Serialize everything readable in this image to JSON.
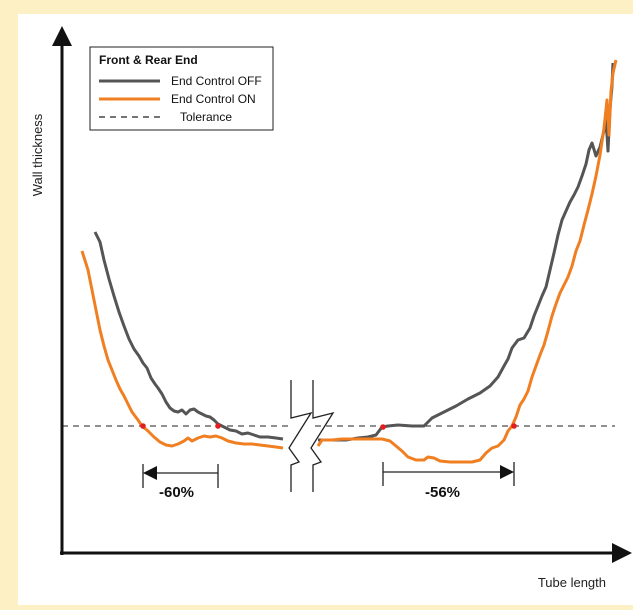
{
  "chart_data": {
    "type": "line",
    "title": "",
    "xlabel": "Tube length",
    "ylabel": "Wall thickness",
    "grid": false,
    "axes_ticks": false,
    "legend": {
      "title": "Front & Rear End",
      "placement": "top-left",
      "entries": [
        {
          "label": "End Control OFF",
          "style": "solid",
          "color": "#555555"
        },
        {
          "label": "End Control ON",
          "style": "solid",
          "color": "#f07f22"
        },
        {
          "label": "Tolerance",
          "style": "dashed",
          "color": "#222222"
        }
      ]
    },
    "annotations": [
      {
        "text": "-60%",
        "region": "front end"
      },
      {
        "text": "-56%",
        "region": "rear end"
      }
    ],
    "break_symbol": true
  },
  "colors": {
    "background": "#fdf0c4",
    "plot_background": "#ffffff",
    "end_control_off": "#555555",
    "end_control_on": "#f07f22",
    "tolerance": "#222222",
    "crossing_marker": "#e01f1f"
  }
}
